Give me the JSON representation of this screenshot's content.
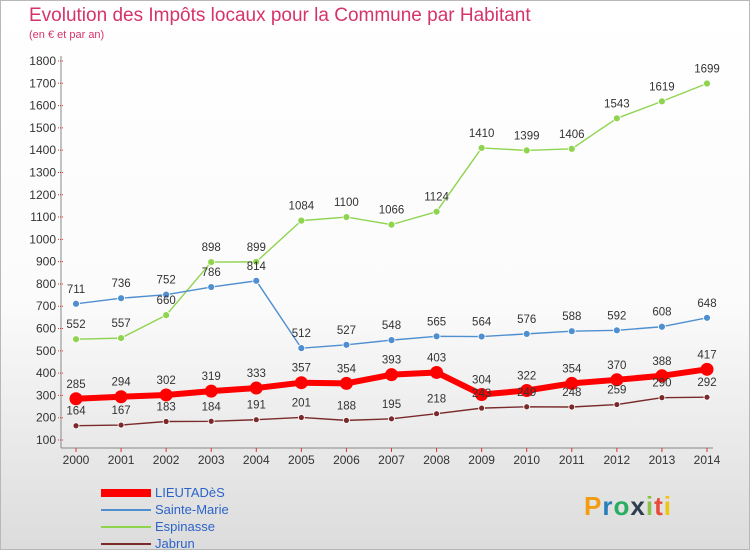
{
  "title": "Evolution des Impôts locaux pour la Commune par Habitant",
  "subtitle": "(en € et par an)",
  "logo": {
    "text": "Proxiti",
    "letters": [
      "P",
      "r",
      "o",
      "x",
      "i",
      "t",
      "i"
    ],
    "colors": [
      "#f39c12",
      "#2980b9",
      "#27ae60",
      "#2c3e50",
      "#8bc34a",
      "#e74c3c",
      "#f1c40f"
    ]
  },
  "chart_data": {
    "type": "line",
    "title": "Evolution des Impôts locaux pour la Commune par Habitant",
    "subtitle": "(en € et par an)",
    "x": [
      2000,
      2001,
      2002,
      2003,
      2004,
      2005,
      2006,
      2007,
      2008,
      2009,
      2010,
      2011,
      2012,
      2013,
      2014
    ],
    "ylim": [
      100,
      1800
    ],
    "yticks": [
      100,
      200,
      300,
      400,
      500,
      600,
      700,
      800,
      900,
      1000,
      1100,
      1200,
      1300,
      1400,
      1500,
      1600,
      1700,
      1800
    ],
    "grid": false,
    "legend": "bottom-left",
    "series": [
      {
        "name": "LIEUTADèS",
        "color": "#ff0000",
        "values": [
          285,
          294,
          302,
          319,
          333,
          357,
          354,
          393,
          403,
          304,
          322,
          354,
          370,
          388,
          417
        ]
      },
      {
        "name": "Sainte-Marie",
        "color": "#4f8fd0",
        "values": [
          711,
          736,
          752,
          786,
          814,
          512,
          527,
          548,
          565,
          564,
          576,
          588,
          592,
          608,
          648
        ]
      },
      {
        "name": "Espinasse",
        "color": "#8fd44f",
        "values": [
          552,
          557,
          660,
          898,
          899,
          1084,
          1100,
          1066,
          1124,
          1410,
          1399,
          1406,
          1543,
          1619,
          1699
        ]
      },
      {
        "name": "Jabrun",
        "color": "#7a2a2a",
        "values": [
          164,
          167,
          183,
          184,
          191,
          201,
          188,
          195,
          218,
          243,
          249,
          248,
          259,
          290,
          292
        ]
      }
    ]
  }
}
